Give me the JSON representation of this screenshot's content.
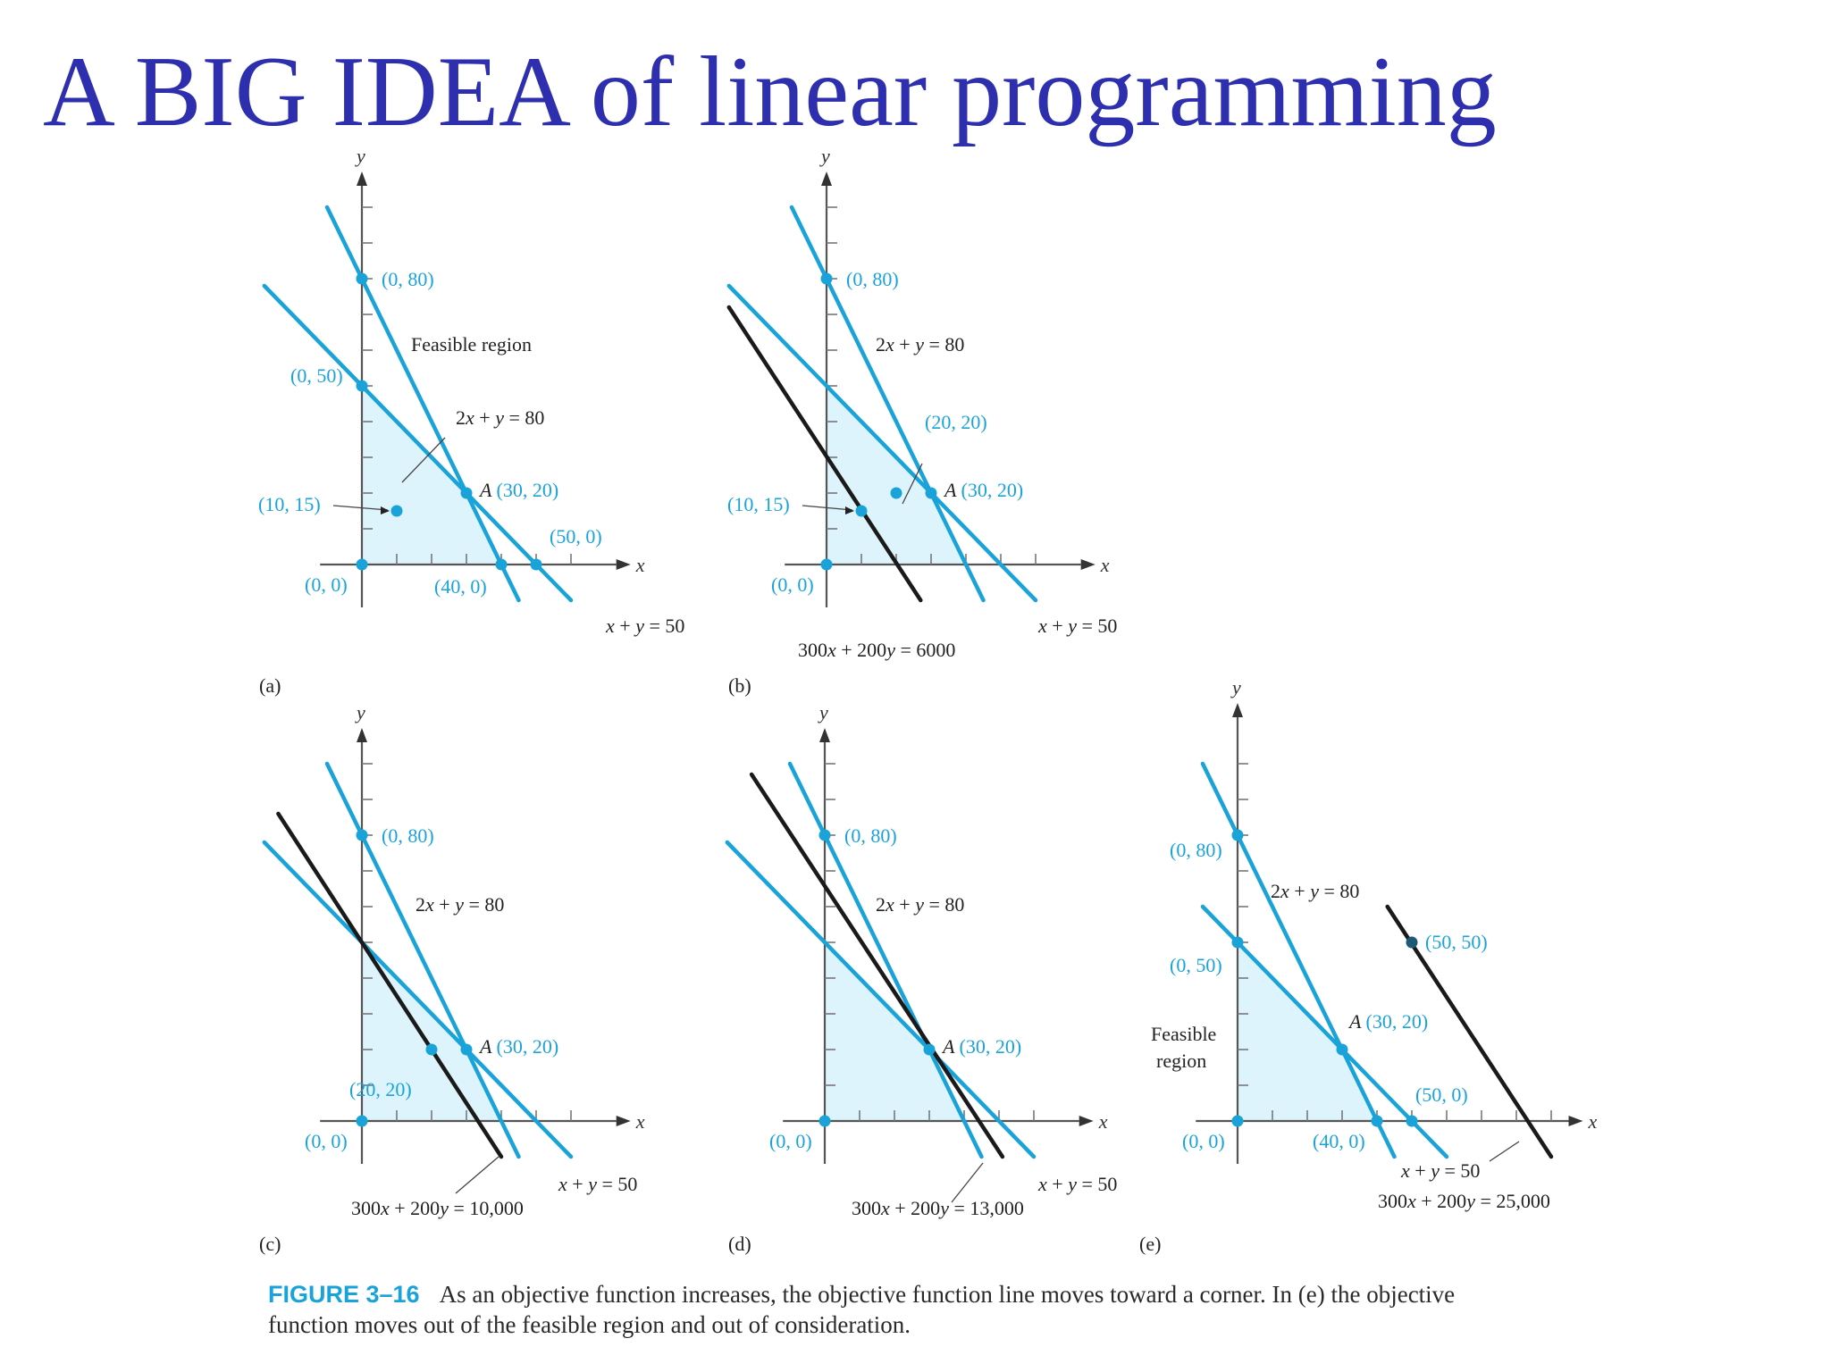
{
  "slide": {
    "title": "A BIG IDEA of linear programming"
  },
  "caption": {
    "label": "FIGURE 3–16",
    "text": "As an objective function increases, the objective function line moves toward a corner. In (e) the objective function moves out of the feasible region and out of consideration."
  },
  "colors": {
    "constraint": "#1aa3d9",
    "objective": "#1a1a1a",
    "region": "#def4fd",
    "label_blue": "#1aa3d9",
    "text": "#2a2a2a"
  },
  "chart_data": [
    {
      "panel": "(a)",
      "type": "line",
      "xlabel": "x",
      "ylabel": "y",
      "xlim": [
        0,
        80
      ],
      "ylim": [
        0,
        100
      ],
      "feasible_region": [
        [
          0,
          0
        ],
        [
          40,
          0
        ],
        [
          30,
          20
        ],
        [
          0,
          50
        ]
      ],
      "constraint_lines": [
        {
          "name": "2x + y = 80",
          "points": [
            [
              -10,
              100
            ],
            [
              45,
              -10
            ]
          ]
        },
        {
          "name": "x + y = 50",
          "points": [
            [
              -28,
              78
            ],
            [
              60,
              -10
            ]
          ]
        }
      ],
      "objective_lines": [],
      "points": [
        {
          "label": "(0, 80)",
          "x": 0,
          "y": 80
        },
        {
          "label": "(0, 50)",
          "x": 0,
          "y": 50
        },
        {
          "label": "(10, 15)",
          "x": 10,
          "y": 15
        },
        {
          "label": "A (30, 20)",
          "x": 30,
          "y": 20
        },
        {
          "label": "(50, 0)",
          "x": 50,
          "y": 0
        },
        {
          "label": "(40, 0)",
          "x": 40,
          "y": 0
        },
        {
          "label": "(0, 0)",
          "x": 0,
          "y": 0
        }
      ],
      "annotations": [
        "Feasible region",
        "2x + y = 80",
        "x + y = 50"
      ]
    },
    {
      "panel": "(b)",
      "type": "line",
      "xlabel": "x",
      "ylabel": "y",
      "xlim": [
        0,
        80
      ],
      "ylim": [
        0,
        100
      ],
      "feasible_region": [
        [
          0,
          0
        ],
        [
          40,
          0
        ],
        [
          30,
          20
        ],
        [
          0,
          50
        ]
      ],
      "constraint_lines": [
        {
          "name": "2x + y = 80",
          "points": [
            [
              -10,
              100
            ],
            [
              45,
              -10
            ]
          ]
        },
        {
          "name": "x + y = 50",
          "points": [
            [
              -28,
              78
            ],
            [
              60,
              -10
            ]
          ]
        }
      ],
      "objective_lines": [
        {
          "name": "300x + 200y = 6000",
          "points": [
            [
              -28,
              72
            ],
            [
              27,
              -10
            ]
          ]
        }
      ],
      "points": [
        {
          "label": "(0, 80)",
          "x": 0,
          "y": 80
        },
        {
          "label": "(20, 20)",
          "x": 20,
          "y": 20
        },
        {
          "label": "(10, 15)",
          "x": 10,
          "y": 15
        },
        {
          "label": "A (30, 20)",
          "x": 30,
          "y": 20
        },
        {
          "label": "(0, 0)",
          "x": 0,
          "y": 0
        }
      ],
      "annotations": [
        "2x + y = 80",
        "x + y = 50",
        "300x + 200y = 6000"
      ]
    },
    {
      "panel": "(c)",
      "type": "line",
      "xlabel": "x",
      "ylabel": "y",
      "xlim": [
        0,
        80
      ],
      "ylim": [
        0,
        100
      ],
      "feasible_region": [
        [
          0,
          0
        ],
        [
          40,
          0
        ],
        [
          30,
          20
        ],
        [
          0,
          50
        ]
      ],
      "constraint_lines": [
        {
          "name": "2x + y = 80",
          "points": [
            [
              -10,
              100
            ],
            [
              45,
              -10
            ]
          ]
        },
        {
          "name": "x + y = 50",
          "points": [
            [
              -28,
              78
            ],
            [
              60,
              -10
            ]
          ]
        }
      ],
      "objective_lines": [
        {
          "name": "300x + 200y = 10,000",
          "points": [
            [
              -24,
              86
            ],
            [
              40,
              -10
            ]
          ]
        }
      ],
      "points": [
        {
          "label": "(0, 80)",
          "x": 0,
          "y": 80
        },
        {
          "label": "A (30, 20)",
          "x": 30,
          "y": 20
        },
        {
          "label": "(20, 20)",
          "x": 20,
          "y": 20
        },
        {
          "label": "(0, 0)",
          "x": 0,
          "y": 0
        }
      ],
      "annotations": [
        "2x + y = 80",
        "x + y = 50",
        "300x + 200y = 10,000"
      ]
    },
    {
      "panel": "(d)",
      "type": "line",
      "xlabel": "x",
      "ylabel": "y",
      "xlim": [
        0,
        80
      ],
      "ylim": [
        0,
        100
      ],
      "feasible_region": [
        [
          0,
          0
        ],
        [
          40,
          0
        ],
        [
          30,
          20
        ],
        [
          0,
          50
        ]
      ],
      "constraint_lines": [
        {
          "name": "2x + y = 80",
          "points": [
            [
              -10,
              100
            ],
            [
              45,
              -10
            ]
          ]
        },
        {
          "name": "x + y = 50",
          "points": [
            [
              -28,
              78
            ],
            [
              60,
              -10
            ]
          ]
        }
      ],
      "objective_lines": [
        {
          "name": "300x + 200y = 13,000",
          "points": [
            [
              -21,
              97
            ],
            [
              51,
              -10
            ]
          ]
        }
      ],
      "points": [
        {
          "label": "(0, 80)",
          "x": 0,
          "y": 80
        },
        {
          "label": "A (30, 20)",
          "x": 30,
          "y": 20
        },
        {
          "label": "(0, 0)",
          "x": 0,
          "y": 0
        }
      ],
      "annotations": [
        "2x + y = 80",
        "x + y = 50",
        "300x + 200y = 13,000"
      ]
    },
    {
      "panel": "(e)",
      "type": "line",
      "xlabel": "x",
      "ylabel": "y",
      "xlim": [
        0,
        95
      ],
      "ylim": [
        0,
        100
      ],
      "feasible_region": [
        [
          0,
          0
        ],
        [
          40,
          0
        ],
        [
          30,
          20
        ],
        [
          0,
          50
        ]
      ],
      "constraint_lines": [
        {
          "name": "2x + y = 80",
          "points": [
            [
              -10,
              100
            ],
            [
              45,
              -10
            ]
          ]
        },
        {
          "name": "x + y = 50",
          "points": [
            [
              -10,
              60
            ],
            [
              60,
              -10
            ]
          ]
        }
      ],
      "objective_lines": [
        {
          "name": "300x + 200y = 25,000",
          "points": [
            [
              43,
              60
            ],
            [
              90,
              -10
            ]
          ]
        }
      ],
      "points": [
        {
          "label": "(0, 80)",
          "x": 0,
          "y": 80
        },
        {
          "label": "(50, 50)",
          "x": 50,
          "y": 50
        },
        {
          "label": "(0, 50)",
          "x": 0,
          "y": 50
        },
        {
          "label": "A (30, 20)",
          "x": 30,
          "y": 20
        },
        {
          "label": "(50, 0)",
          "x": 50,
          "y": 0
        },
        {
          "label": "(40, 0)",
          "x": 40,
          "y": 0
        },
        {
          "label": "(0, 0)",
          "x": 0,
          "y": 0
        }
      ],
      "annotations": [
        "Feasible region",
        "2x + y = 80",
        "x + y = 50",
        "300x + 200y = 25,000"
      ]
    }
  ]
}
